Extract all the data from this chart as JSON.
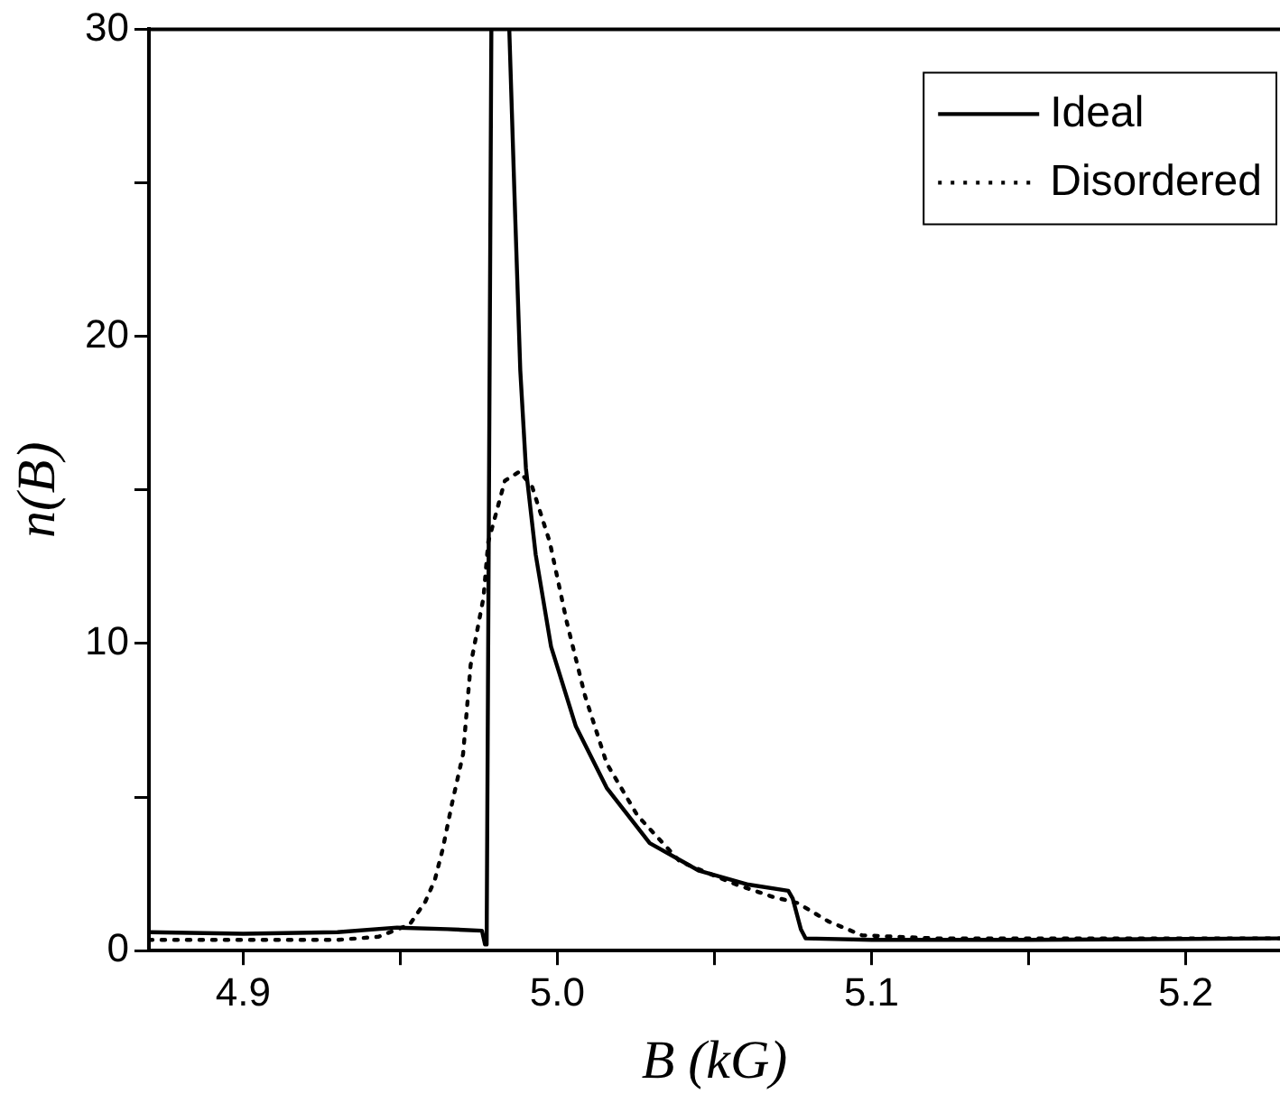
{
  "chart_data": {
    "type": "line",
    "xlabel": "B (kG)",
    "ylabel": "n(B)",
    "xlim": [
      4.87,
      5.23
    ],
    "xticks": [
      {
        "value": 4.9,
        "label": "4.9"
      },
      {
        "value": 4.95,
        "label": null
      },
      {
        "value": 5,
        "label": "5.0"
      },
      {
        "value": 5.05,
        "label": null
      },
      {
        "value": 5.1,
        "label": "5.1"
      },
      {
        "value": 5.15,
        "label": null
      },
      {
        "value": 5.2,
        "label": "5.2"
      }
    ],
    "ylim": [
      0,
      30
    ],
    "yticks": [
      0,
      {
        "value": 5,
        "label": null
      },
      10,
      {
        "value": 15,
        "label": null
      },
      20,
      {
        "value": 25,
        "label": null
      },
      30
    ],
    "legend": "top right",
    "marker": "none",
    "grid": false,
    "series": [
      {
        "name": "Ideal",
        "color": "#000000",
        "line_style": "solid",
        "x": [
          4.87,
          4.9,
          4.93,
          4.949,
          4.965,
          4.976,
          4.977,
          4.9775,
          4.979,
          4.982,
          4.9847,
          4.9863,
          4.9882,
          4.99,
          4.9931,
          4.998,
          5.0059,
          5.0157,
          5.0294,
          5.0451,
          5.0608,
          5.0735,
          5.0749,
          5.0775,
          5.079,
          5.1,
          5.15,
          5.23
        ],
        "values": [
          0.6,
          0.55,
          0.6,
          0.75,
          0.7,
          0.65,
          0.2,
          0.2,
          30,
          null,
          30,
          24.8,
          18.9,
          15.7,
          12.9,
          9.9,
          7.3,
          5.3,
          3.5,
          2.6,
          2.15,
          1.95,
          1.7,
          0.7,
          0.4,
          0.35,
          0.35,
          0.4
        ]
      },
      {
        "name": "Disordered",
        "color": "#000000",
        "line_style": "dotted",
        "x": [
          4.87,
          4.9,
          4.93,
          4.943,
          4.953,
          4.958,
          4.961,
          4.9635,
          4.9665,
          4.97,
          4.9724,
          4.9765,
          4.978,
          4.9833,
          4.988,
          4.992,
          4.9976,
          5.003,
          5.0088,
          5.0157,
          5.0255,
          5.039,
          5.057,
          5.0686,
          5.0765,
          5.0863,
          5.097,
          5.12,
          5.23
        ],
        "values": [
          0.35,
          0.35,
          0.35,
          0.45,
          0.85,
          1.6,
          2.3,
          3.3,
          4.8,
          6.4,
          9.3,
          11.5,
          13.3,
          15.3,
          15.6,
          15.1,
          13.3,
          10.7,
          8.3,
          6.1,
          4.4,
          2.9,
          2.15,
          1.75,
          1.55,
          0.95,
          0.5,
          0.4,
          0.4
        ]
      }
    ]
  }
}
